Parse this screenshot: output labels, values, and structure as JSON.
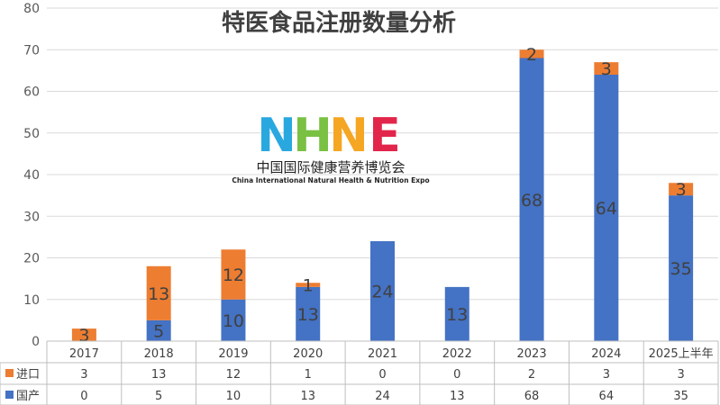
{
  "chart_data": {
    "type": "bar",
    "stacked": true,
    "title": "特医食品注册数量分析",
    "categories": [
      "2017",
      "2018",
      "2019",
      "2020",
      "2021",
      "2022",
      "2023",
      "2024",
      "2025上半年"
    ],
    "series": [
      {
        "name": "国产",
        "color": "#4472C4",
        "values": [
          0,
          5,
          10,
          13,
          24,
          13,
          68,
          64,
          35
        ]
      },
      {
        "name": "进口",
        "color": "#ED7D31",
        "values": [
          3,
          13,
          12,
          1,
          0,
          0,
          2,
          3,
          3
        ]
      }
    ],
    "ylim": [
      0,
      80
    ],
    "yticks": [
      0,
      10,
      20,
      30,
      40,
      50,
      60,
      70,
      80
    ],
    "grid": true,
    "legend": "data-table"
  },
  "logo": {
    "letters": [
      "N",
      "H",
      "N",
      "E"
    ],
    "title_zh": "中国国际健康营养博览会",
    "title_en": "China International Natural Health & Nutrition Expo"
  }
}
